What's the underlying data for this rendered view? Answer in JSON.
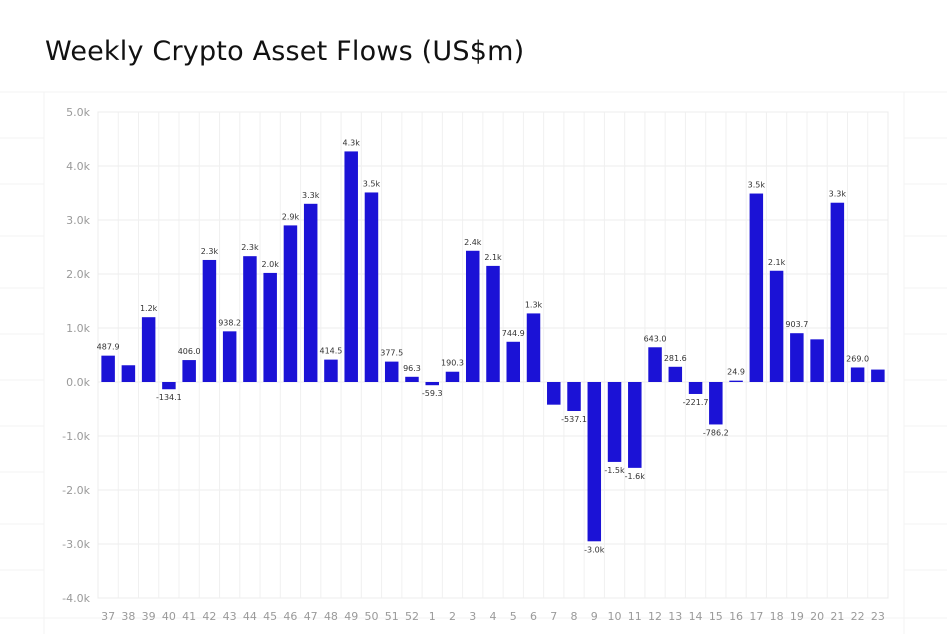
{
  "chart_data": {
    "type": "bar",
    "title": "Weekly Crypto Asset Flows (US$m)",
    "xlabel": "",
    "ylabel": "",
    "ylim": [
      -4000,
      5000
    ],
    "y_ticks": [
      5000,
      4000,
      3000,
      2000,
      1000,
      0,
      -1000,
      -2000,
      -3000,
      -4000
    ],
    "y_tick_labels": [
      "5.0k",
      "4.0k",
      "3.0k",
      "2.0k",
      "1.0k",
      "0.0k",
      "-1.0k",
      "-2.0k",
      "-3.0k",
      "-4.0k"
    ],
    "grid": true,
    "bar_color": "#1b12d6",
    "categories": [
      "37",
      "38",
      "39",
      "40",
      "41",
      "42",
      "43",
      "44",
      "45",
      "46",
      "47",
      "48",
      "49",
      "50",
      "51",
      "52",
      "1",
      "2",
      "3",
      "4",
      "5",
      "6",
      "7",
      "8",
      "9",
      "10",
      "11",
      "12",
      "13",
      "14",
      "15",
      "16",
      "17",
      "18",
      "19",
      "20",
      "21",
      "22",
      "23"
    ],
    "values": [
      487.9,
      310,
      1200,
      -134.1,
      406.0,
      2260,
      938.2,
      2330,
      2020,
      2900,
      3300,
      414.5,
      4270,
      3510,
      377.5,
      96.3,
      -59.3,
      190.3,
      2430,
      2150,
      744.9,
      1270,
      -420,
      -537.1,
      -2950,
      -1480,
      -1590,
      643.0,
      281.6,
      -221.7,
      -786.2,
      24.9,
      3490,
      2060,
      903.7,
      790,
      3320,
      269.0,
      230
    ],
    "data_labels": [
      "487.9",
      "",
      "1.2k",
      "-134.1",
      "406.0",
      "2.3k",
      "938.2",
      "2.3k",
      "2.0k",
      "2.9k",
      "3.3k",
      "414.5",
      "4.3k",
      "3.5k",
      "377.5",
      "96.3",
      "-59.3",
      "190.3",
      "2.4k",
      "2.1k",
      "744.9",
      "1.3k",
      "",
      "-537.1",
      "-3.0k",
      "-1.5k",
      "-1.6k",
      "643.0",
      "281.6",
      "-221.7",
      "-786.2",
      "24.9",
      "3.5k",
      "2.1k",
      "903.7",
      "",
      "3.3k",
      "269.0",
      ""
    ]
  }
}
